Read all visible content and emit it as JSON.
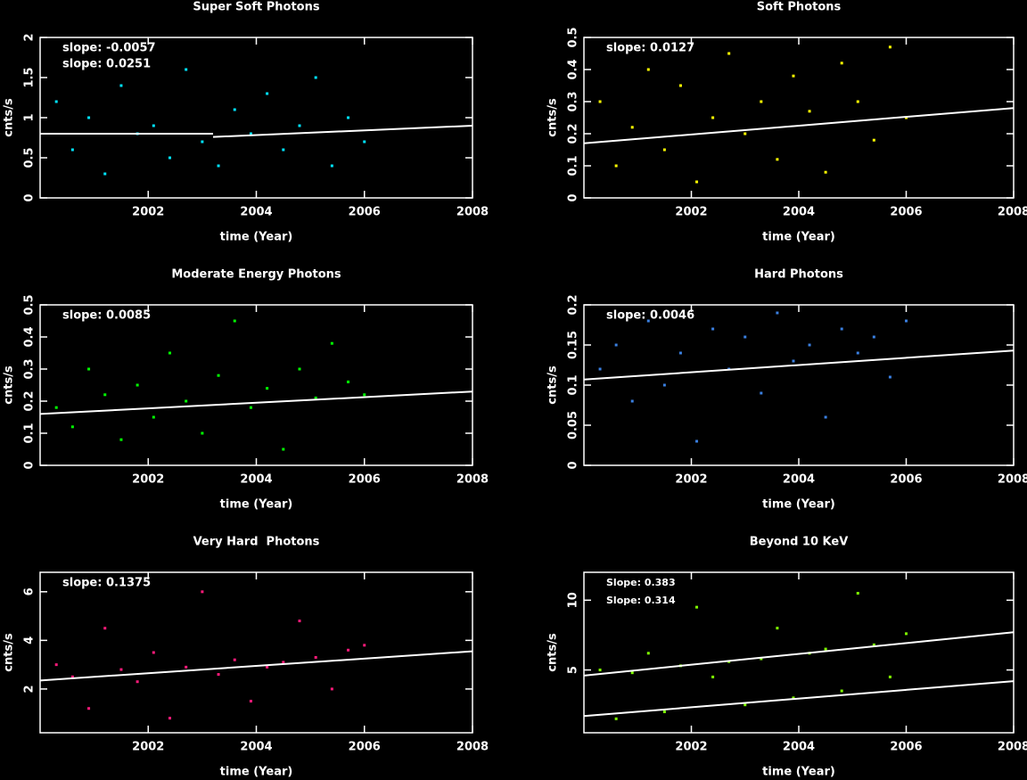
{
  "chart_data": [
    {
      "type": "scatter",
      "title": "Super Soft Photons",
      "xlabel": "time (Year)",
      "ylabel": "cnts/s",
      "xlim": [
        2000,
        2008
      ],
      "xticks": [
        2002,
        2004,
        2006,
        2008
      ],
      "ylim": [
        0,
        2
      ],
      "yticks": [
        0,
        0.5,
        1,
        1.5,
        2
      ],
      "annotations": [
        "slope: -0.0057",
        "slope: 0.0251"
      ],
      "points": {
        "color": "#00e5ff",
        "x": [
          2000.3,
          2000.6,
          2000.9,
          2001.2,
          2001.5,
          2001.8,
          2002.1,
          2002.4,
          2002.7,
          2003.0,
          2003.3,
          2003.6,
          2003.9,
          2004.2,
          2004.5,
          2004.8,
          2005.1,
          2005.4,
          2005.7,
          2006.0
        ],
        "values": [
          1.2,
          0.6,
          1.0,
          0.3,
          1.4,
          0.8,
          0.9,
          0.5,
          1.6,
          0.7,
          0.4,
          1.1,
          0.8,
          1.3,
          0.6,
          0.9,
          1.5,
          0.4,
          1.0,
          0.7
        ]
      },
      "fits": [
        {
          "color": "#ffffff",
          "x": [
            2000,
            2003.2
          ],
          "values": [
            0.8,
            0.8
          ]
        },
        {
          "color": "#ffffff",
          "x": [
            2003.2,
            2008
          ],
          "values": [
            0.76,
            0.9
          ]
        }
      ]
    },
    {
      "type": "scatter",
      "title": "Soft Photons",
      "xlabel": "time (Year)",
      "ylabel": "cnts/s",
      "xlim": [
        2000,
        2008
      ],
      "xticks": [
        2002,
        2004,
        2006,
        2008
      ],
      "ylim": [
        0,
        0.5
      ],
      "yticks": [
        0,
        0.1,
        0.2,
        0.3,
        0.4,
        0.5
      ],
      "annotations": [
        "slope: 0.0127"
      ],
      "points": {
        "color": "#ffff00",
        "x": [
          2000.3,
          2000.6,
          2000.9,
          2001.2,
          2001.5,
          2001.8,
          2002.1,
          2002.4,
          2002.7,
          2003.0,
          2003.3,
          2003.6,
          2003.9,
          2004.2,
          2004.5,
          2004.8,
          2005.1,
          2005.4,
          2005.7,
          2006.0
        ],
        "values": [
          0.3,
          0.1,
          0.22,
          0.4,
          0.15,
          0.35,
          0.05,
          0.25,
          0.45,
          0.2,
          0.3,
          0.12,
          0.38,
          0.27,
          0.08,
          0.42,
          0.3,
          0.18,
          0.47,
          0.25
        ]
      },
      "fits": [
        {
          "color": "#ffffff",
          "x": [
            2000,
            2008
          ],
          "values": [
            0.17,
            0.28
          ]
        }
      ]
    },
    {
      "type": "scatter",
      "title": "Moderate Energy Photons",
      "xlabel": "time (Year)",
      "ylabel": "cnts/s",
      "xlim": [
        2000,
        2008
      ],
      "xticks": [
        2002,
        2004,
        2006,
        2008
      ],
      "ylim": [
        0,
        0.5
      ],
      "yticks": [
        0,
        0.1,
        0.2,
        0.3,
        0.4,
        0.5
      ],
      "annotations": [
        "slope: 0.0085"
      ],
      "points": {
        "color": "#00ff00",
        "x": [
          2000.3,
          2000.6,
          2000.9,
          2001.2,
          2001.5,
          2001.8,
          2002.1,
          2002.4,
          2002.7,
          2003.0,
          2003.3,
          2003.6,
          2003.9,
          2004.2,
          2004.5,
          2004.8,
          2005.1,
          2005.4,
          2005.7,
          2006.0
        ],
        "values": [
          0.18,
          0.12,
          0.3,
          0.22,
          0.08,
          0.25,
          0.15,
          0.35,
          0.2,
          0.1,
          0.28,
          0.45,
          0.18,
          0.24,
          0.05,
          0.3,
          0.21,
          0.38,
          0.26,
          0.22
        ]
      },
      "fits": [
        {
          "color": "#ffffff",
          "x": [
            2000,
            2008
          ],
          "values": [
            0.16,
            0.23
          ]
        }
      ]
    },
    {
      "type": "scatter",
      "title": "Hard Photons",
      "xlabel": "time (Year)",
      "ylabel": "cnts/s",
      "xlim": [
        2000,
        2008
      ],
      "xticks": [
        2002,
        2004,
        2006,
        2008
      ],
      "ylim": [
        0,
        0.2
      ],
      "yticks": [
        0,
        0.05,
        0.1,
        0.15,
        0.2
      ],
      "annotations": [
        "slope: 0.0046"
      ],
      "points": {
        "color": "#3a7fe0",
        "x": [
          2000.3,
          2000.6,
          2000.9,
          2001.2,
          2001.5,
          2001.8,
          2002.1,
          2002.4,
          2002.7,
          2003.0,
          2003.3,
          2003.6,
          2003.9,
          2004.2,
          2004.5,
          2004.8,
          2005.1,
          2005.4,
          2005.7,
          2006.0
        ],
        "values": [
          0.12,
          0.15,
          0.08,
          0.18,
          0.1,
          0.14,
          0.03,
          0.17,
          0.12,
          0.16,
          0.09,
          0.19,
          0.13,
          0.15,
          0.06,
          0.17,
          0.14,
          0.16,
          0.11,
          0.18
        ]
      },
      "fits": [
        {
          "color": "#ffffff",
          "x": [
            2000,
            2008
          ],
          "values": [
            0.107,
            0.143
          ]
        }
      ]
    },
    {
      "type": "scatter",
      "title": "Very Hard  Photons",
      "xlabel": "time (Year)",
      "ylabel": "cnts/s",
      "xlim": [
        2000,
        2008
      ],
      "xticks": [
        2002,
        2004,
        2006,
        2008
      ],
      "ylim": [
        0.2,
        6.8
      ],
      "yticks": [
        2,
        4,
        6
      ],
      "annotations": [
        "slope: 0.1375"
      ],
      "points": {
        "color": "#ff1a7a",
        "x": [
          2000.3,
          2000.6,
          2000.9,
          2001.2,
          2001.5,
          2001.8,
          2002.1,
          2002.4,
          2002.7,
          2003.0,
          2003.3,
          2003.6,
          2003.9,
          2004.2,
          2004.5,
          2004.8,
          2005.1,
          2005.4,
          2005.7,
          2006.0
        ],
        "values": [
          3.0,
          2.5,
          1.2,
          4.5,
          2.8,
          2.3,
          3.5,
          0.8,
          2.9,
          6.0,
          2.6,
          3.2,
          1.5,
          2.9,
          3.1,
          4.8,
          3.3,
          2.0,
          3.6,
          3.8
        ]
      },
      "fits": [
        {
          "color": "#ffffff",
          "x": [
            2000,
            2008
          ],
          "values": [
            2.35,
            3.55
          ]
        }
      ]
    },
    {
      "type": "scatter",
      "title": "Beyond 10 KeV",
      "xlabel": "time (Year)",
      "ylabel": "cnts/s",
      "xlim": [
        2000,
        2008
      ],
      "xticks": [
        2002,
        2004,
        2006,
        2008
      ],
      "ylim": [
        0.5,
        12
      ],
      "yticks": [
        5,
        10
      ],
      "annotations": [
        "Slope: 0.383",
        "Slope: 0.314"
      ],
      "points": {
        "color": "#7fff00",
        "x": [
          2000.3,
          2000.6,
          2000.9,
          2001.2,
          2001.5,
          2001.8,
          2002.1,
          2002.4,
          2002.7,
          2003.0,
          2003.3,
          2003.6,
          2003.9,
          2004.2,
          2004.5,
          2004.8,
          2005.1,
          2005.4,
          2005.7,
          2006.0
        ],
        "values": [
          5.0,
          1.5,
          4.8,
          6.2,
          2.0,
          5.3,
          9.5,
          4.5,
          5.6,
          2.5,
          5.8,
          8.0,
          3.0,
          6.2,
          6.5,
          3.5,
          10.5,
          6.8,
          4.5,
          7.6
        ]
      },
      "fits": [
        {
          "color": "#ffffff",
          "x": [
            2000,
            2008
          ],
          "values": [
            4.6,
            7.7
          ]
        },
        {
          "color": "#ffffff",
          "x": [
            2000,
            2008
          ],
          "values": [
            1.7,
            4.2
          ]
        }
      ]
    }
  ]
}
